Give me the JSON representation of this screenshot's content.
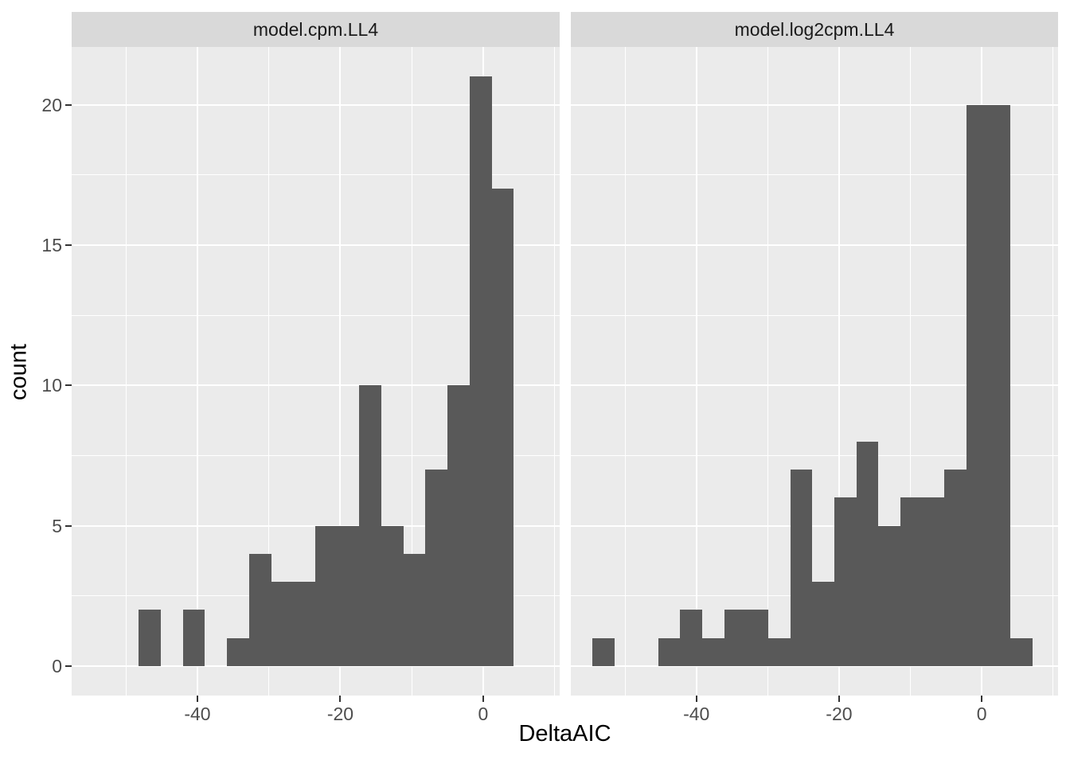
{
  "chart_data": {
    "type": "bar",
    "subtype": "faceted-histogram",
    "title": "",
    "xlabel": "DeltaAIC",
    "ylabel": "count",
    "x_range": [
      -57.6,
      10.7
    ],
    "y_range": [
      -1.05,
      22.06
    ],
    "x_major_ticks": [
      -40,
      -20,
      0
    ],
    "x_minor_ticks": [
      -50,
      -30,
      -10,
      10
    ],
    "y_major_ticks": [
      0,
      5,
      10,
      15,
      20
    ],
    "y_minor_ticks": [
      2.5,
      7.5,
      12.5,
      17.5
    ],
    "x_tick_labels": [
      "-40",
      "-20",
      "0"
    ],
    "y_tick_labels": [
      "0",
      "5",
      "10",
      "15",
      "20"
    ],
    "binwidth": 3.086,
    "grid": "on",
    "legend": "none",
    "facets": [
      {
        "label": "model.cpm.LL4",
        "bin_start": -48.2,
        "counts": [
          2,
          0,
          2,
          0,
          1,
          4,
          3,
          3,
          5,
          5,
          10,
          5,
          4,
          7,
          10,
          21,
          17
        ]
      },
      {
        "label": "model.log2cpm.LL4",
        "bin_start": -54.6,
        "counts": [
          1,
          0,
          0,
          1,
          2,
          1,
          2,
          2,
          1,
          7,
          3,
          6,
          8,
          5,
          6,
          6,
          7,
          20,
          20,
          1
        ]
      }
    ],
    "colors": {
      "bar_fill": "#595959",
      "panel_bg": "#EBEBEB",
      "strip_bg": "#D9D9D9",
      "grid": "#FFFFFF",
      "tick_label": "#4D4D4D",
      "axis_title": "#000000",
      "strip_text": "#1A1A1A",
      "tick_mark": "#333333",
      "background": "#FFFFFF"
    }
  }
}
